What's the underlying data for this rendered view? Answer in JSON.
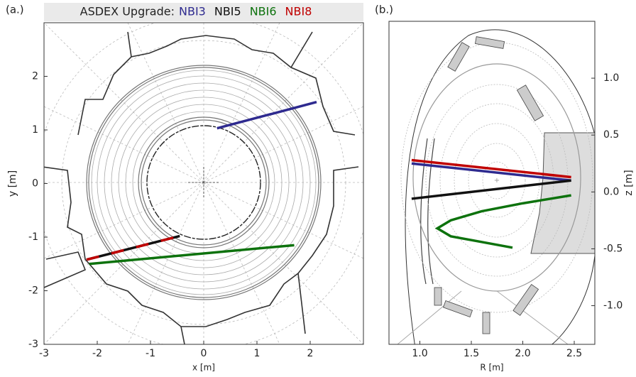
{
  "chart_data": [
    {
      "type": "line",
      "panel_label": "(a.)",
      "title": "ASDEX Upgrade:",
      "x_label": "x [m]",
      "y_label": "y [m]",
      "xlim": [
        -3,
        3
      ],
      "ylim": [
        -3,
        3
      ],
      "xticks": [
        -3,
        -2,
        -1,
        0,
        1,
        2
      ],
      "yticks": [
        -3,
        -2,
        -1,
        0,
        1,
        2
      ],
      "series": [
        {
          "name": "NBI3",
          "color": "#2e2a8f",
          "x": [
            0.25,
            2.12
          ],
          "y": [
            1.03,
            1.52
          ]
        },
        {
          "name": "NBI5",
          "color": "#111111",
          "x": [
            -2.2,
            -0.45
          ],
          "y": [
            -1.42,
            -0.98
          ]
        },
        {
          "name": "NBI6",
          "color": "#0d720d",
          "x": [
            -2.15,
            1.7
          ],
          "y": [
            -1.5,
            -1.15
          ]
        },
        {
          "name": "NBI8",
          "color": "#c00000",
          "linestyle": "dashed",
          "x": [
            -2.2,
            -0.45
          ],
          "y": [
            -1.42,
            -0.98
          ]
        }
      ]
    },
    {
      "type": "line",
      "panel_label": "(b.)",
      "x_label": "R [m]",
      "y_label": "z [m]",
      "xlim": [
        0.7,
        2.7
      ],
      "ylim": [
        -1.34,
        1.5
      ],
      "xticks": [
        {
          "value": 1,
          "label": "1.0"
        },
        1.5,
        {
          "value": 2,
          "label": "2.0"
        },
        2.5
      ],
      "yticks": [
        {
          "value": -1,
          "label": "-1.0"
        },
        -0.5,
        {
          "value": 0,
          "label": "0.0"
        },
        0.5,
        {
          "value": 1,
          "label": "1.0"
        }
      ],
      "series": [
        {
          "color": "#2e2a8f",
          "x": [
            0.92,
            2.47
          ],
          "y": [
            0.25,
            0.1
          ]
        },
        {
          "color": "#111111",
          "x": [
            0.92,
            2.47
          ],
          "y": [
            -0.06,
            0.1
          ]
        },
        {
          "color": "#0d720d",
          "x": [
            2.47,
            2.0,
            1.6,
            1.3,
            1.17,
            1.3,
            1.6,
            1.9
          ],
          "y": [
            -0.03,
            -0.1,
            -0.17,
            -0.25,
            -0.32,
            -0.39,
            -0.44,
            -0.49
          ]
        },
        {
          "color": "#c00000",
          "x": [
            0.92,
            2.47
          ],
          "y": [
            0.28,
            0.13
          ]
        }
      ]
    }
  ]
}
